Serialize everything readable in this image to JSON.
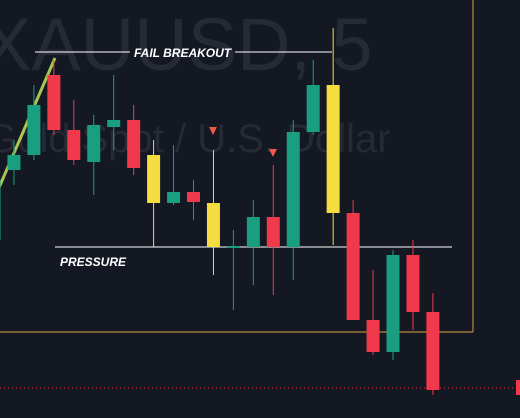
{
  "chart_data": {
    "type": "candlestick",
    "watermark_symbol": "XAUUSD, 5",
    "watermark_name": "Gold Spot / U.S. Dollar",
    "annotations": [
      "FAIL BREAKOUT",
      "PRESSURE"
    ],
    "ylim": [
      0,
      418
    ],
    "candles": [
      {
        "open": 178,
        "close": 238,
        "high": 243,
        "low": 173,
        "color": "#1a9e80"
      },
      {
        "open": 248,
        "close": 263,
        "high": 278,
        "low": 233,
        "color": "#1a9e80"
      },
      {
        "open": 263,
        "close": 313,
        "high": 333,
        "low": 258,
        "color": "#1a9e80"
      },
      {
        "open": 343,
        "close": 288,
        "high": 358,
        "low": 283,
        "color": "#f0394b"
      },
      {
        "open": 288,
        "close": 258,
        "high": 318,
        "low": 253,
        "color": "#f0394b"
      },
      {
        "open": 256,
        "close": 293,
        "high": 303,
        "low": 223,
        "color": "#1a9e80"
      },
      {
        "open": 291,
        "close": 298,
        "high": 343,
        "low": 268,
        "color": "#1a9e80"
      },
      {
        "open": 298,
        "close": 250,
        "high": 313,
        "low": 243,
        "color": "#f0394b"
      },
      {
        "open": 263,
        "close": 215,
        "high": 278,
        "low": 171,
        "color": "#f5dd3f"
      },
      {
        "open": 215,
        "close": 226,
        "high": 273,
        "low": 213,
        "color": "#1a9e80"
      },
      {
        "open": 226,
        "close": 216,
        "high": 238,
        "low": 198,
        "color": "#f0394b"
      },
      {
        "open": 215,
        "close": 171,
        "high": 268,
        "low": 143,
        "color": "#f5dd3f"
      },
      {
        "open": 170,
        "close": 172,
        "high": 188,
        "low": 108,
        "color": "#1a9e80"
      },
      {
        "open": 171,
        "close": 201,
        "high": 218,
        "low": 133,
        "color": "#1a9e80"
      },
      {
        "open": 201,
        "close": 171,
        "high": 253,
        "low": 123,
        "color": "#f0394b"
      },
      {
        "open": 171,
        "close": 286,
        "high": 298,
        "low": 138,
        "color": "#1a9e80"
      },
      {
        "open": 286,
        "close": 333,
        "high": 358,
        "low": 283,
        "color": "#1a9e80"
      },
      {
        "open": 333,
        "close": 205,
        "high": 390,
        "low": 173,
        "color": "#f5dd3f"
      },
      {
        "open": 205,
        "close": 98,
        "high": 218,
        "low": 98,
        "color": "#f0394b"
      },
      {
        "open": 98,
        "close": 66,
        "high": 148,
        "low": 63,
        "color": "#f0394b"
      },
      {
        "open": 66,
        "close": 163,
        "high": 168,
        "low": 58,
        "color": "#1a9e80"
      },
      {
        "open": 163,
        "close": 106,
        "high": 178,
        "low": 88,
        "color": "#f0394b"
      },
      {
        "open": 106,
        "close": 28,
        "high": 125,
        "low": 23,
        "color": "#f0394b"
      }
    ]
  }
}
